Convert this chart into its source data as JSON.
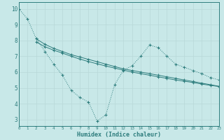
{
  "bg_color": "#c8e8e8",
  "grid_color": "#d0d0d0",
  "line_color": "#2e7d7d",
  "line1_x": [
    0,
    1,
    2,
    3,
    4,
    5,
    6,
    7,
    8,
    9,
    10,
    11,
    12,
    13,
    14,
    15,
    16,
    17,
    18,
    19,
    20,
    21,
    22,
    23
  ],
  "line1_y": [
    10.0,
    9.35,
    8.1,
    7.3,
    6.5,
    5.8,
    4.85,
    4.4,
    4.1,
    2.9,
    3.3,
    5.2,
    6.1,
    6.4,
    7.0,
    7.7,
    7.55,
    7.0,
    6.5,
    6.3,
    6.1,
    5.9,
    5.65,
    5.5
  ],
  "line2_x": [
    2,
    3,
    4,
    5,
    6,
    7,
    8,
    9,
    10,
    11,
    12,
    13,
    14,
    15,
    16,
    17,
    18,
    19,
    20,
    21,
    22,
    23
  ],
  "line2_y": [
    8.1,
    7.75,
    7.5,
    7.3,
    7.1,
    6.95,
    6.8,
    6.65,
    6.5,
    6.35,
    6.2,
    6.1,
    6.0,
    5.9,
    5.8,
    5.7,
    5.6,
    5.5,
    5.4,
    5.3,
    5.2,
    5.1
  ],
  "line3_x": [
    2,
    3,
    4,
    5,
    6,
    7,
    8,
    9,
    10,
    11,
    12,
    13,
    14,
    15,
    16,
    17,
    18,
    19,
    20,
    21,
    22,
    23
  ],
  "line3_y": [
    7.9,
    7.6,
    7.38,
    7.2,
    7.0,
    6.82,
    6.66,
    6.52,
    6.38,
    6.25,
    6.12,
    6.0,
    5.9,
    5.8,
    5.7,
    5.6,
    5.5,
    5.42,
    5.34,
    5.24,
    5.16,
    5.08
  ],
  "xlabel": "Humidex (Indice chaleur)",
  "xlim": [
    0,
    23
  ],
  "ylim": [
    2.6,
    10.4
  ],
  "yticks": [
    3,
    4,
    5,
    6,
    7,
    8,
    9,
    10
  ],
  "xticks": [
    0,
    1,
    2,
    3,
    4,
    5,
    6,
    7,
    8,
    9,
    10,
    11,
    12,
    13,
    14,
    15,
    16,
    17,
    18,
    19,
    20,
    21,
    22,
    23
  ],
  "xtick_labels": [
    "0",
    "1",
    "2",
    "3",
    "4",
    "5",
    "6",
    "7",
    "8",
    "9",
    "10",
    "11",
    "12",
    "13",
    "14",
    "15",
    "16",
    "17",
    "18",
    "19",
    "20",
    "21",
    "22",
    "23"
  ]
}
